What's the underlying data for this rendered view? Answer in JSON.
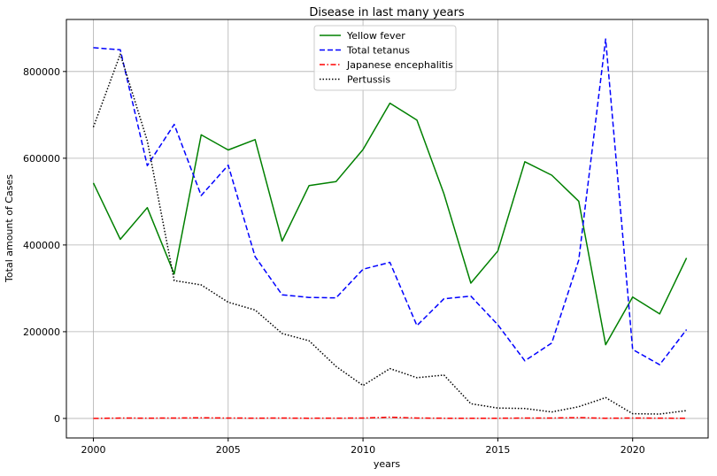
{
  "chart_data": {
    "type": "line",
    "title": "Disease in last many years",
    "xlabel": "years",
    "ylabel": "Total amount of Cases",
    "xlim": [
      1999,
      2022.8
    ],
    "ylim": [
      -45000,
      920000
    ],
    "xticks": [
      2000,
      2005,
      2010,
      2015,
      2020
    ],
    "yticks": [
      0,
      200000,
      400000,
      600000,
      800000
    ],
    "xtick_labels": [
      "2000",
      "2005",
      "2010",
      "2015",
      "2020"
    ],
    "ytick_labels": [
      "0",
      "200000",
      "400000",
      "600000",
      "800000"
    ],
    "grid": true,
    "legend_position": "upper center",
    "x": [
      2000,
      2001,
      2002,
      2003,
      2004,
      2005,
      2006,
      2007,
      2008,
      2009,
      2010,
      2011,
      2012,
      2013,
      2014,
      2015,
      2016,
      2017,
      2018,
      2019,
      2020,
      2021,
      2022
    ],
    "series": [
      {
        "name": "Yellow fever",
        "color": "#008000",
        "style": "solid",
        "values": [
          543000,
          413000,
          486000,
          333000,
          654000,
          619000,
          643000,
          409000,
          537000,
          546000,
          620000,
          727000,
          688000,
          518000,
          312000,
          386000,
          592000,
          561000,
          501000,
          170000,
          280000,
          241000,
          370000
        ]
      },
      {
        "name": "Total tetanus",
        "color": "#0000ff",
        "style": "dashed",
        "values": [
          855000,
          850000,
          583000,
          678000,
          514000,
          584000,
          373000,
          285000,
          279000,
          278000,
          344000,
          360000,
          214000,
          276000,
          282000,
          216000,
          133000,
          174000,
          365000,
          875000,
          159000,
          124000,
          205000
        ]
      },
      {
        "name": "Japanese encephalitis",
        "color": "#ff0000",
        "style": "dashdot",
        "values": [
          0,
          1000,
          800,
          1000,
          1500,
          1000,
          800,
          1000,
          500,
          800,
          1000,
          3000,
          1000,
          500,
          300,
          500,
          1000,
          1000,
          2000,
          500,
          1000,
          800,
          300
        ]
      },
      {
        "name": "Pertussis",
        "color": "#000000",
        "style": "dotted",
        "values": [
          672000,
          840000,
          640000,
          318000,
          308000,
          268000,
          250000,
          196000,
          179000,
          120000,
          76000,
          115000,
          94000,
          100000,
          34000,
          24000,
          23000,
          15000,
          27000,
          48000,
          11000,
          10000,
          18000
        ]
      }
    ]
  }
}
